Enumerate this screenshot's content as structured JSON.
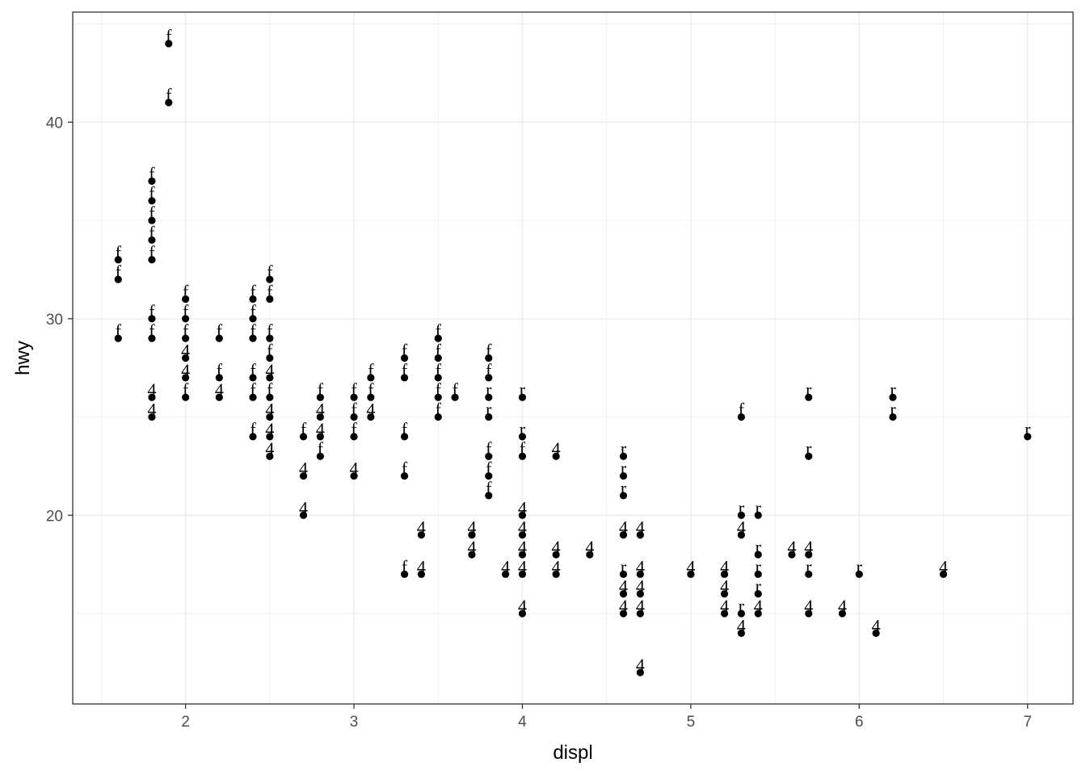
{
  "chart_data": {
    "type": "scatter",
    "title": "",
    "xlabel": "displ",
    "ylabel": "hwy",
    "xlim": [
      1.33,
      7.27
    ],
    "ylim": [
      10.4,
      45.6
    ],
    "x_ticks": [
      2,
      3,
      4,
      5,
      6,
      7
    ],
    "y_ticks": [
      20,
      30,
      40
    ],
    "grid": true,
    "point_color": "#000000",
    "label_note": "each point is annotated with a text label: f, 4 or r",
    "points": [
      {
        "x": 1.6,
        "y": 33,
        "label": "f"
      },
      {
        "x": 1.6,
        "y": 32,
        "label": "f"
      },
      {
        "x": 1.6,
        "y": 29,
        "label": "f"
      },
      {
        "x": 1.8,
        "y": 37,
        "label": "f"
      },
      {
        "x": 1.8,
        "y": 36,
        "label": "f"
      },
      {
        "x": 1.8,
        "y": 35,
        "label": "f"
      },
      {
        "x": 1.8,
        "y": 34,
        "label": "f"
      },
      {
        "x": 1.8,
        "y": 33,
        "label": "f"
      },
      {
        "x": 1.8,
        "y": 30,
        "label": "f"
      },
      {
        "x": 1.8,
        "y": 29,
        "label": "f"
      },
      {
        "x": 1.8,
        "y": 26,
        "label": "4"
      },
      {
        "x": 1.8,
        "y": 25,
        "label": "4"
      },
      {
        "x": 1.9,
        "y": 44,
        "label": "f"
      },
      {
        "x": 1.9,
        "y": 41,
        "label": "f"
      },
      {
        "x": 2.0,
        "y": 31,
        "label": "f"
      },
      {
        "x": 2.0,
        "y": 30,
        "label": "f"
      },
      {
        "x": 2.0,
        "y": 29,
        "label": "f"
      },
      {
        "x": 2.0,
        "y": 28,
        "label": "4"
      },
      {
        "x": 2.0,
        "y": 27,
        "label": "4"
      },
      {
        "x": 2.0,
        "y": 26,
        "label": "f"
      },
      {
        "x": 2.2,
        "y": 29,
        "label": "f"
      },
      {
        "x": 2.2,
        "y": 27,
        "label": "f"
      },
      {
        "x": 2.2,
        "y": 26,
        "label": "4"
      },
      {
        "x": 2.4,
        "y": 31,
        "label": "f"
      },
      {
        "x": 2.4,
        "y": 30,
        "label": "f"
      },
      {
        "x": 2.4,
        "y": 29,
        "label": "f"
      },
      {
        "x": 2.4,
        "y": 27,
        "label": "f"
      },
      {
        "x": 2.4,
        "y": 26,
        "label": "f"
      },
      {
        "x": 2.4,
        "y": 24,
        "label": "f"
      },
      {
        "x": 2.5,
        "y": 32,
        "label": "f"
      },
      {
        "x": 2.5,
        "y": 31,
        "label": "f"
      },
      {
        "x": 2.5,
        "y": 29,
        "label": "f"
      },
      {
        "x": 2.5,
        "y": 28,
        "label": "f"
      },
      {
        "x": 2.5,
        "y": 27,
        "label": "4"
      },
      {
        "x": 2.5,
        "y": 26,
        "label": "f"
      },
      {
        "x": 2.5,
        "y": 25,
        "label": "4"
      },
      {
        "x": 2.5,
        "y": 24,
        "label": "4"
      },
      {
        "x": 2.5,
        "y": 23,
        "label": "4"
      },
      {
        "x": 2.7,
        "y": 24,
        "label": "f"
      },
      {
        "x": 2.7,
        "y": 22,
        "label": "4"
      },
      {
        "x": 2.7,
        "y": 20,
        "label": "4"
      },
      {
        "x": 2.8,
        "y": 26,
        "label": "f"
      },
      {
        "x": 2.8,
        "y": 25,
        "label": "4"
      },
      {
        "x": 2.8,
        "y": 24,
        "label": "4"
      },
      {
        "x": 2.8,
        "y": 23,
        "label": "f"
      },
      {
        "x": 3.0,
        "y": 26,
        "label": "f"
      },
      {
        "x": 3.0,
        "y": 25,
        "label": "f"
      },
      {
        "x": 3.0,
        "y": 24,
        "label": "f"
      },
      {
        "x": 3.0,
        "y": 22,
        "label": "4"
      },
      {
        "x": 3.1,
        "y": 27,
        "label": "f"
      },
      {
        "x": 3.1,
        "y": 26,
        "label": "f"
      },
      {
        "x": 3.1,
        "y": 25,
        "label": "4"
      },
      {
        "x": 3.3,
        "y": 28,
        "label": "f"
      },
      {
        "x": 3.3,
        "y": 27,
        "label": "f"
      },
      {
        "x": 3.3,
        "y": 24,
        "label": "f"
      },
      {
        "x": 3.3,
        "y": 22,
        "label": "f"
      },
      {
        "x": 3.3,
        "y": 17,
        "label": "f"
      },
      {
        "x": 3.4,
        "y": 19,
        "label": "4"
      },
      {
        "x": 3.4,
        "y": 17,
        "label": "4"
      },
      {
        "x": 3.5,
        "y": 29,
        "label": "f"
      },
      {
        "x": 3.5,
        "y": 28,
        "label": "f"
      },
      {
        "x": 3.5,
        "y": 27,
        "label": "f"
      },
      {
        "x": 3.5,
        "y": 26,
        "label": "f"
      },
      {
        "x": 3.5,
        "y": 25,
        "label": "f"
      },
      {
        "x": 3.6,
        "y": 26,
        "label": "f"
      },
      {
        "x": 3.7,
        "y": 19,
        "label": "4"
      },
      {
        "x": 3.7,
        "y": 18,
        "label": "4"
      },
      {
        "x": 3.8,
        "y": 28,
        "label": "f"
      },
      {
        "x": 3.8,
        "y": 27,
        "label": "f"
      },
      {
        "x": 3.8,
        "y": 26,
        "label": "r"
      },
      {
        "x": 3.8,
        "y": 25,
        "label": "r"
      },
      {
        "x": 3.8,
        "y": 23,
        "label": "f"
      },
      {
        "x": 3.8,
        "y": 22,
        "label": "f"
      },
      {
        "x": 3.8,
        "y": 21,
        "label": "f"
      },
      {
        "x": 3.9,
        "y": 17,
        "label": "4"
      },
      {
        "x": 4.0,
        "y": 26,
        "label": "r"
      },
      {
        "x": 4.0,
        "y": 24,
        "label": "r"
      },
      {
        "x": 4.0,
        "y": 23,
        "label": "f"
      },
      {
        "x": 4.0,
        "y": 20,
        "label": "4"
      },
      {
        "x": 4.0,
        "y": 19,
        "label": "4"
      },
      {
        "x": 4.0,
        "y": 18,
        "label": "4"
      },
      {
        "x": 4.0,
        "y": 17,
        "label": "4"
      },
      {
        "x": 4.0,
        "y": 15,
        "label": "4"
      },
      {
        "x": 4.2,
        "y": 23,
        "label": "4"
      },
      {
        "x": 4.2,
        "y": 18,
        "label": "4"
      },
      {
        "x": 4.2,
        "y": 17,
        "label": "4"
      },
      {
        "x": 4.4,
        "y": 18,
        "label": "4"
      },
      {
        "x": 4.6,
        "y": 23,
        "label": "r"
      },
      {
        "x": 4.6,
        "y": 22,
        "label": "r"
      },
      {
        "x": 4.6,
        "y": 21,
        "label": "r"
      },
      {
        "x": 4.6,
        "y": 19,
        "label": "4"
      },
      {
        "x": 4.6,
        "y": 17,
        "label": "r"
      },
      {
        "x": 4.6,
        "y": 16,
        "label": "4"
      },
      {
        "x": 4.6,
        "y": 15,
        "label": "4"
      },
      {
        "x": 4.7,
        "y": 19,
        "label": "4"
      },
      {
        "x": 4.7,
        "y": 17,
        "label": "4"
      },
      {
        "x": 4.7,
        "y": 16,
        "label": "4"
      },
      {
        "x": 4.7,
        "y": 15,
        "label": "4"
      },
      {
        "x": 4.7,
        "y": 12,
        "label": "4"
      },
      {
        "x": 5.0,
        "y": 17,
        "label": "4"
      },
      {
        "x": 5.2,
        "y": 17,
        "label": "4"
      },
      {
        "x": 5.2,
        "y": 16,
        "label": "4"
      },
      {
        "x": 5.2,
        "y": 15,
        "label": "4"
      },
      {
        "x": 5.3,
        "y": 25,
        "label": "f"
      },
      {
        "x": 5.3,
        "y": 20,
        "label": "r"
      },
      {
        "x": 5.3,
        "y": 19,
        "label": "4"
      },
      {
        "x": 5.3,
        "y": 15,
        "label": "r"
      },
      {
        "x": 5.3,
        "y": 14,
        "label": "4"
      },
      {
        "x": 5.4,
        "y": 20,
        "label": "r"
      },
      {
        "x": 5.4,
        "y": 18,
        "label": "r"
      },
      {
        "x": 5.4,
        "y": 17,
        "label": "r"
      },
      {
        "x": 5.4,
        "y": 16,
        "label": "r"
      },
      {
        "x": 5.4,
        "y": 15,
        "label": "4"
      },
      {
        "x": 5.6,
        "y": 18,
        "label": "4"
      },
      {
        "x": 5.7,
        "y": 26,
        "label": "r"
      },
      {
        "x": 5.7,
        "y": 23,
        "label": "r"
      },
      {
        "x": 5.7,
        "y": 18,
        "label": "4"
      },
      {
        "x": 5.7,
        "y": 17,
        "label": "r"
      },
      {
        "x": 5.7,
        "y": 15,
        "label": "4"
      },
      {
        "x": 5.9,
        "y": 15,
        "label": "4"
      },
      {
        "x": 6.0,
        "y": 17,
        "label": "r"
      },
      {
        "x": 6.1,
        "y": 14,
        "label": "4"
      },
      {
        "x": 6.2,
        "y": 26,
        "label": "r"
      },
      {
        "x": 6.2,
        "y": 25,
        "label": "r"
      },
      {
        "x": 6.5,
        "y": 17,
        "label": "4"
      },
      {
        "x": 7.0,
        "y": 24,
        "label": "r"
      }
    ]
  }
}
